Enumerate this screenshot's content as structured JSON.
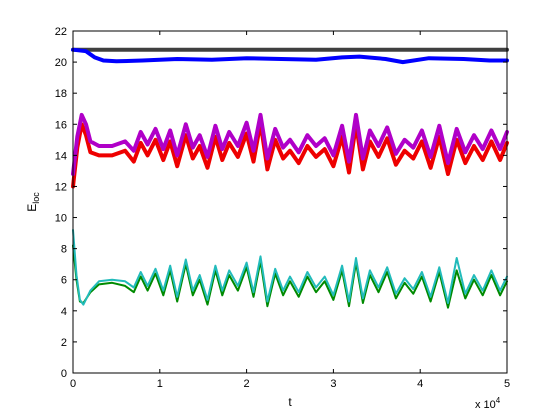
{
  "chart_data": {
    "type": "line",
    "title": "",
    "xlabel": "t",
    "ylabel_main": "E",
    "ylabel_sub": "loc",
    "x_exponent_base": "x 10",
    "x_exponent_power": "4",
    "xlim": [
      0,
      5
    ],
    "ylim": [
      0,
      22
    ],
    "xticks": [
      0,
      1,
      2,
      3,
      4,
      5
    ],
    "yticks": [
      0,
      2,
      4,
      6,
      8,
      10,
      12,
      14,
      16,
      18,
      20,
      22
    ],
    "grid": false,
    "legend": "none",
    "series": [
      {
        "color": "#404040",
        "width": 4,
        "x": [
          0,
          5
        ],
        "y": [
          20.8,
          20.8
        ]
      },
      {
        "color": "#0000ff",
        "width": 4,
        "x": [
          0,
          0.15,
          0.25,
          0.35,
          0.5,
          0.8,
          1.2,
          1.6,
          2.0,
          2.4,
          2.8,
          3.1,
          3.3,
          3.6,
          3.8,
          4.1,
          4.5,
          4.8,
          5.0
        ],
        "y": [
          20.8,
          20.7,
          20.3,
          20.1,
          20.05,
          20.1,
          20.2,
          20.15,
          20.25,
          20.2,
          20.15,
          20.3,
          20.35,
          20.2,
          20.0,
          20.25,
          20.2,
          20.1,
          20.1
        ]
      },
      {
        "color": "#ee0000",
        "width": 4,
        "x": [
          0,
          0.05,
          0.1,
          0.15,
          0.2,
          0.3,
          0.45,
          0.6,
          0.7,
          0.78,
          0.86,
          0.95,
          1.04,
          1.12,
          1.2,
          1.3,
          1.38,
          1.46,
          1.55,
          1.64,
          1.72,
          1.8,
          1.9,
          2.0,
          2.08,
          2.16,
          2.24,
          2.33,
          2.42,
          2.5,
          2.6,
          2.7,
          2.8,
          2.9,
          3.0,
          3.1,
          3.18,
          3.26,
          3.34,
          3.42,
          3.52,
          3.62,
          3.72,
          3.82,
          3.92,
          4.02,
          4.12,
          4.22,
          4.32,
          4.42,
          4.52,
          4.62,
          4.72,
          4.82,
          4.92,
          5.0
        ],
        "y": [
          12.0,
          14.5,
          16.0,
          15.3,
          14.2,
          14.0,
          14.0,
          14.3,
          13.6,
          14.8,
          14.0,
          15.0,
          13.7,
          14.9,
          13.3,
          15.3,
          13.8,
          14.6,
          13.2,
          15.2,
          13.7,
          14.8,
          13.9,
          15.4,
          13.6,
          16.1,
          13.1,
          15.0,
          13.8,
          14.3,
          13.5,
          14.6,
          13.9,
          14.4,
          13.3,
          15.2,
          12.9,
          16.0,
          13.1,
          14.9,
          13.9,
          15.1,
          13.4,
          14.3,
          13.8,
          14.9,
          13.2,
          15.2,
          12.8,
          15.0,
          13.5,
          14.6,
          13.7,
          14.9,
          13.7,
          14.8
        ]
      },
      {
        "color": "#b000c8",
        "width": 4,
        "x": [
          0,
          0.05,
          0.1,
          0.15,
          0.2,
          0.3,
          0.45,
          0.6,
          0.7,
          0.78,
          0.86,
          0.95,
          1.04,
          1.12,
          1.2,
          1.3,
          1.38,
          1.46,
          1.55,
          1.64,
          1.72,
          1.8,
          1.9,
          2.0,
          2.08,
          2.16,
          2.24,
          2.33,
          2.42,
          2.5,
          2.6,
          2.7,
          2.8,
          2.9,
          3.0,
          3.1,
          3.18,
          3.26,
          3.34,
          3.42,
          3.52,
          3.62,
          3.72,
          3.82,
          3.92,
          4.02,
          4.12,
          4.22,
          4.32,
          4.42,
          4.52,
          4.62,
          4.72,
          4.82,
          4.92,
          5.0
        ],
        "y": [
          12.8,
          15.2,
          16.6,
          16.0,
          14.9,
          14.6,
          14.6,
          14.9,
          14.3,
          15.5,
          14.7,
          15.7,
          14.4,
          15.6,
          14.0,
          16.0,
          14.5,
          15.3,
          13.9,
          15.9,
          14.4,
          15.5,
          14.6,
          16.1,
          14.3,
          16.6,
          13.8,
          15.7,
          14.5,
          15.0,
          14.2,
          15.3,
          14.6,
          15.1,
          14.0,
          15.9,
          13.6,
          16.6,
          13.8,
          15.6,
          14.6,
          15.8,
          14.1,
          15.0,
          14.5,
          15.6,
          13.9,
          15.9,
          13.5,
          15.7,
          14.2,
          15.3,
          14.4,
          15.6,
          14.4,
          15.5
        ]
      },
      {
        "color": "#008a00",
        "width": 2,
        "x": [
          0,
          0.04,
          0.08,
          0.12,
          0.2,
          0.3,
          0.45,
          0.6,
          0.7,
          0.78,
          0.86,
          0.95,
          1.04,
          1.12,
          1.2,
          1.3,
          1.38,
          1.46,
          1.55,
          1.64,
          1.72,
          1.8,
          1.9,
          2.0,
          2.08,
          2.16,
          2.24,
          2.33,
          2.42,
          2.5,
          2.6,
          2.7,
          2.8,
          2.9,
          3.0,
          3.1,
          3.18,
          3.26,
          3.34,
          3.42,
          3.52,
          3.62,
          3.72,
          3.82,
          3.92,
          4.02,
          4.12,
          4.22,
          4.32,
          4.42,
          4.52,
          4.62,
          4.72,
          4.82,
          4.92,
          5.0
        ],
        "y": [
          8.2,
          6.0,
          4.6,
          4.5,
          5.2,
          5.7,
          5.8,
          5.6,
          5.2,
          6.2,
          5.3,
          6.4,
          5.0,
          6.6,
          4.6,
          7.0,
          5.0,
          6.0,
          4.4,
          6.6,
          5.0,
          6.3,
          5.3,
          6.8,
          4.9,
          7.2,
          4.3,
          6.4,
          5.0,
          5.9,
          4.9,
          6.2,
          5.2,
          5.9,
          4.7,
          6.6,
          4.3,
          7.1,
          4.5,
          6.3,
          5.2,
          6.5,
          4.8,
          5.8,
          5.1,
          6.2,
          4.6,
          6.5,
          4.2,
          6.6,
          4.8,
          6.0,
          5.0,
          6.3,
          5.0,
          5.9
        ]
      },
      {
        "color": "#22bbbb",
        "width": 2,
        "x": [
          0,
          0.04,
          0.08,
          0.12,
          0.2,
          0.3,
          0.45,
          0.6,
          0.7,
          0.78,
          0.86,
          0.95,
          1.04,
          1.12,
          1.2,
          1.3,
          1.38,
          1.46,
          1.55,
          1.64,
          1.72,
          1.8,
          1.9,
          2.0,
          2.08,
          2.16,
          2.24,
          2.33,
          2.42,
          2.5,
          2.6,
          2.7,
          2.8,
          2.9,
          3.0,
          3.1,
          3.18,
          3.26,
          3.34,
          3.42,
          3.52,
          3.62,
          3.72,
          3.82,
          3.92,
          4.02,
          4.12,
          4.22,
          4.32,
          4.42,
          4.52,
          4.62,
          4.72,
          4.82,
          4.92,
          5.0
        ],
        "y": [
          9.2,
          6.3,
          4.7,
          4.4,
          5.3,
          5.9,
          6.0,
          5.9,
          5.5,
          6.5,
          5.6,
          6.7,
          5.3,
          6.9,
          4.9,
          7.3,
          5.3,
          6.3,
          4.7,
          6.9,
          5.3,
          6.6,
          5.6,
          7.1,
          5.2,
          7.5,
          4.6,
          6.7,
          5.3,
          6.2,
          5.2,
          6.5,
          5.5,
          6.2,
          5.0,
          6.9,
          4.6,
          7.4,
          4.8,
          6.6,
          5.5,
          6.8,
          5.1,
          6.1,
          5.4,
          6.5,
          4.9,
          6.8,
          4.5,
          7.4,
          5.1,
          6.3,
          5.3,
          6.6,
          5.3,
          6.2
        ]
      }
    ]
  }
}
